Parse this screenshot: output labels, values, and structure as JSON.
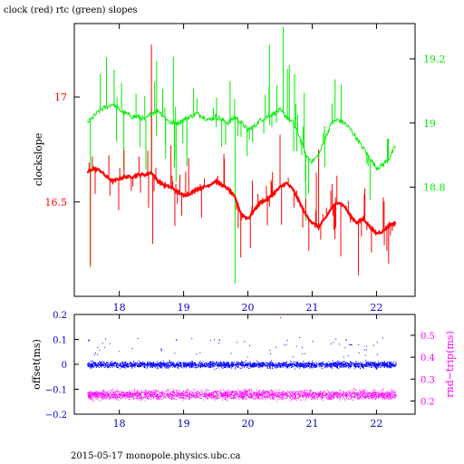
{
  "title": "clock (red) rtc (green) slopes",
  "footer": "2015-05-17  monopole.physics.ubc.ca",
  "colors": {
    "clock": "#ff0000",
    "rtc": "#00ee00",
    "offset": "#0000ff",
    "rndtrip": "#ff00ff",
    "frame": "#000000"
  },
  "chart_data": [
    {
      "type": "line",
      "ylabel": "clockslope",
      "xlim": [
        17.3,
        22.6
      ],
      "ylim": [
        16.05,
        17.35
      ],
      "y2lim": [
        18.46,
        19.31
      ],
      "x_ticks": [
        "18",
        "19",
        "20",
        "21",
        "22"
      ],
      "x_tick_values": [
        18,
        19,
        20,
        21,
        22
      ],
      "y_ticks": [
        "17",
        "16.5"
      ],
      "y_tick_values": [
        17,
        16.5
      ],
      "y2_ticks": [
        "19.2",
        "19",
        "18.8"
      ],
      "y2_tick_values": [
        19.2,
        19.0,
        18.8
      ],
      "series": [
        {
          "name": "clock",
          "axis": "left",
          "x": [
            17.5,
            17.6,
            17.7,
            17.8,
            17.9,
            18.0,
            18.1,
            18.2,
            18.3,
            18.4,
            18.5,
            18.6,
            18.7,
            18.8,
            18.9,
            19.0,
            19.1,
            19.2,
            19.3,
            19.4,
            19.5,
            19.6,
            19.7,
            19.8,
            19.9,
            20.0,
            20.1,
            20.2,
            20.3,
            20.4,
            20.5,
            20.6,
            20.7,
            20.8,
            20.9,
            21.0,
            21.1,
            21.2,
            21.3,
            21.4,
            21.5,
            21.6,
            21.7,
            21.8,
            21.9,
            22.0,
            22.1,
            22.2,
            22.3
          ],
          "values": [
            16.64,
            16.66,
            16.65,
            16.62,
            16.6,
            16.61,
            16.62,
            16.62,
            16.63,
            16.63,
            16.64,
            16.6,
            16.58,
            16.57,
            16.55,
            16.53,
            16.54,
            16.56,
            16.57,
            16.58,
            16.6,
            16.58,
            16.56,
            16.52,
            16.44,
            16.42,
            16.46,
            16.5,
            16.51,
            16.54,
            16.57,
            16.59,
            16.56,
            16.5,
            16.44,
            16.4,
            16.38,
            16.42,
            16.47,
            16.5,
            16.48,
            16.43,
            16.4,
            16.42,
            16.38,
            16.35,
            16.36,
            16.39,
            16.4
          ]
        },
        {
          "name": "rtc",
          "axis": "right",
          "x": [
            17.5,
            17.6,
            17.7,
            17.8,
            17.9,
            18.0,
            18.1,
            18.2,
            18.3,
            18.4,
            18.5,
            18.6,
            18.7,
            18.8,
            18.9,
            19.0,
            19.1,
            19.2,
            19.3,
            19.4,
            19.5,
            19.6,
            19.7,
            19.8,
            19.9,
            20.0,
            20.1,
            20.2,
            20.3,
            20.4,
            20.5,
            20.6,
            20.7,
            20.8,
            20.9,
            21.0,
            21.1,
            21.2,
            21.3,
            21.4,
            21.5,
            21.6,
            21.7,
            21.8,
            21.9,
            22.0,
            22.1,
            22.2,
            22.3
          ],
          "values": [
            19.0,
            19.02,
            19.04,
            19.05,
            19.06,
            19.04,
            19.03,
            19.02,
            19.02,
            19.01,
            19.03,
            19.04,
            19.02,
            19.0,
            19.0,
            19.01,
            19.02,
            19.03,
            19.02,
            19.01,
            19.02,
            19.01,
            19.0,
            19.02,
            19.0,
            18.98,
            18.99,
            19.01,
            19.02,
            19.03,
            19.04,
            19.02,
            19.0,
            18.96,
            18.9,
            18.88,
            18.9,
            18.95,
            19.0,
            19.01,
            19.0,
            18.98,
            18.95,
            18.92,
            18.89,
            18.86,
            18.87,
            18.89,
            18.93
          ]
        }
      ]
    },
    {
      "type": "scatter",
      "ylabel": "offset(ms)",
      "y2label": "rnd−trip(ms)",
      "xlim": [
        17.3,
        22.6
      ],
      "ylim": [
        -0.2,
        0.2
      ],
      "y2lim": [
        0.14,
        0.595
      ],
      "x_ticks": [
        "18",
        "19",
        "20",
        "21",
        "22"
      ],
      "x_tick_values": [
        18,
        19,
        20,
        21,
        22
      ],
      "y_ticks": [
        "0.2",
        "0.1",
        "0",
        "−0.1",
        "−0.2"
      ],
      "y_tick_values": [
        0.2,
        0.1,
        0,
        -0.1,
        -0.2
      ],
      "y2_ticks": [
        "0.5",
        "0.4",
        "0.3",
        "0.2"
      ],
      "y2_tick_values": [
        0.5,
        0.4,
        0.3,
        0.2
      ],
      "series": [
        {
          "name": "offset",
          "axis": "left",
          "x_range": [
            17.5,
            22.3
          ],
          "center": 0.0,
          "spread": 0.012
        },
        {
          "name": "rnd-trip",
          "axis": "right",
          "x_range": [
            17.5,
            22.3
          ],
          "center": 0.23,
          "spread": 0.02
        }
      ]
    }
  ]
}
